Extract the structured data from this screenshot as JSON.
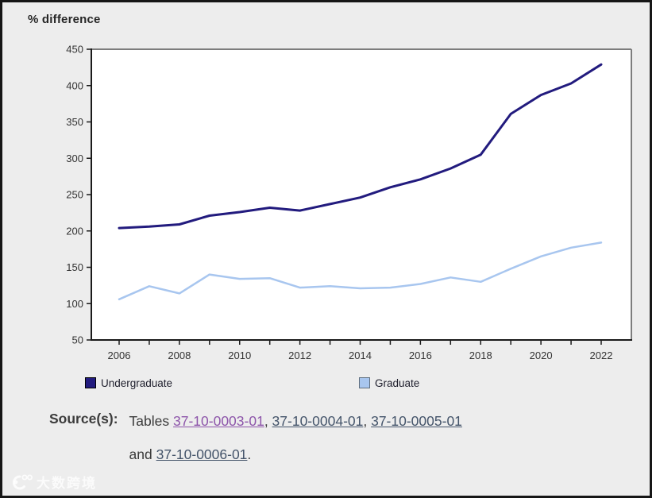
{
  "page": {
    "title": "% difference"
  },
  "colors": {
    "frame_border": "#161616",
    "panel_bg": "#ededed",
    "plot_bg": "#ffffff",
    "axis_dark": "#1a1a1a",
    "axis_gray": "#7d7d7d",
    "tick_label": "#333333",
    "title_text": "#262626",
    "source_text": "#3b3b3b",
    "link_visited": "#8d55aa",
    "link_normal": "#44546a",
    "watermark": "rgba(255,255,255,0.78)"
  },
  "chart_data": {
    "type": "line",
    "title": "% difference",
    "x": [
      2006,
      2007,
      2008,
      2009,
      2010,
      2011,
      2012,
      2013,
      2014,
      2015,
      2016,
      2017,
      2018,
      2019,
      2020,
      2021,
      2022
    ],
    "x_tick_label_every": 2,
    "ylim": [
      50,
      450
    ],
    "y_tick_step": 50,
    "grid": false,
    "legend_position": "bottom",
    "series": [
      {
        "name": "Undergraduate",
        "color": "#221b7e",
        "swatch_border": "#000000",
        "values": [
          204,
          206,
          209,
          221,
          226,
          232,
          228,
          237,
          246,
          260,
          271,
          286,
          305,
          361,
          387,
          403,
          429
        ]
      },
      {
        "name": "Graduate",
        "color": "#a8c6ef",
        "swatch_border": "#5f6e7e",
        "values": [
          106,
          124,
          114,
          140,
          134,
          135,
          122,
          124,
          121,
          122,
          127,
          136,
          130,
          148,
          165,
          177,
          184
        ]
      }
    ]
  },
  "source": {
    "label": "Source(s):",
    "prefix": "Tables ",
    "links": [
      {
        "text": "37-10-0003-01",
        "visited": true
      },
      {
        "text": "37-10-0004-01",
        "visited": false
      },
      {
        "text": "37-10-0005-01",
        "visited": false
      },
      {
        "text": "37-10-0006-01",
        "visited": false
      }
    ],
    "separator": ", ",
    "and_word": "and ",
    "period": "."
  },
  "watermark": {
    "text": "大数跨境",
    "logo": "swirl-c-logo"
  }
}
